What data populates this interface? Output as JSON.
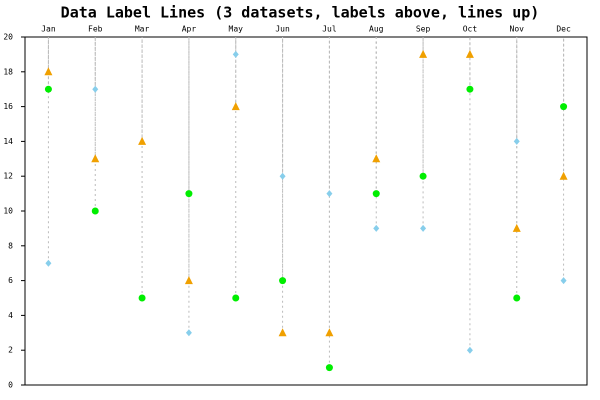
{
  "chart_data": {
    "type": "scatter",
    "title": "Data Label Lines (3 datasets, labels above, lines up)",
    "categories": [
      "Jan",
      "Feb",
      "Mar",
      "Apr",
      "May",
      "Jun",
      "Jul",
      "Aug",
      "Sep",
      "Oct",
      "Nov",
      "Dec"
    ],
    "series": [
      {
        "color": "#00ee00",
        "marker": "circle",
        "values": [
          17,
          10,
          5,
          11,
          5,
          6,
          1,
          11,
          12,
          17,
          5,
          16
        ]
      },
      {
        "color": "#f0a000",
        "marker": "triangle",
        "values": [
          18,
          13,
          14,
          6,
          16,
          3,
          3,
          13,
          19,
          19,
          9,
          12
        ]
      },
      {
        "color": "#87ceeb",
        "marker": "diamond",
        "values": [
          7,
          17,
          null,
          3,
          19,
          12,
          11,
          9,
          9,
          2,
          14,
          6
        ]
      }
    ],
    "ylim": [
      0,
      20
    ],
    "yticks": [
      0,
      2,
      4,
      6,
      8,
      10,
      12,
      14,
      16,
      18,
      20
    ]
  }
}
